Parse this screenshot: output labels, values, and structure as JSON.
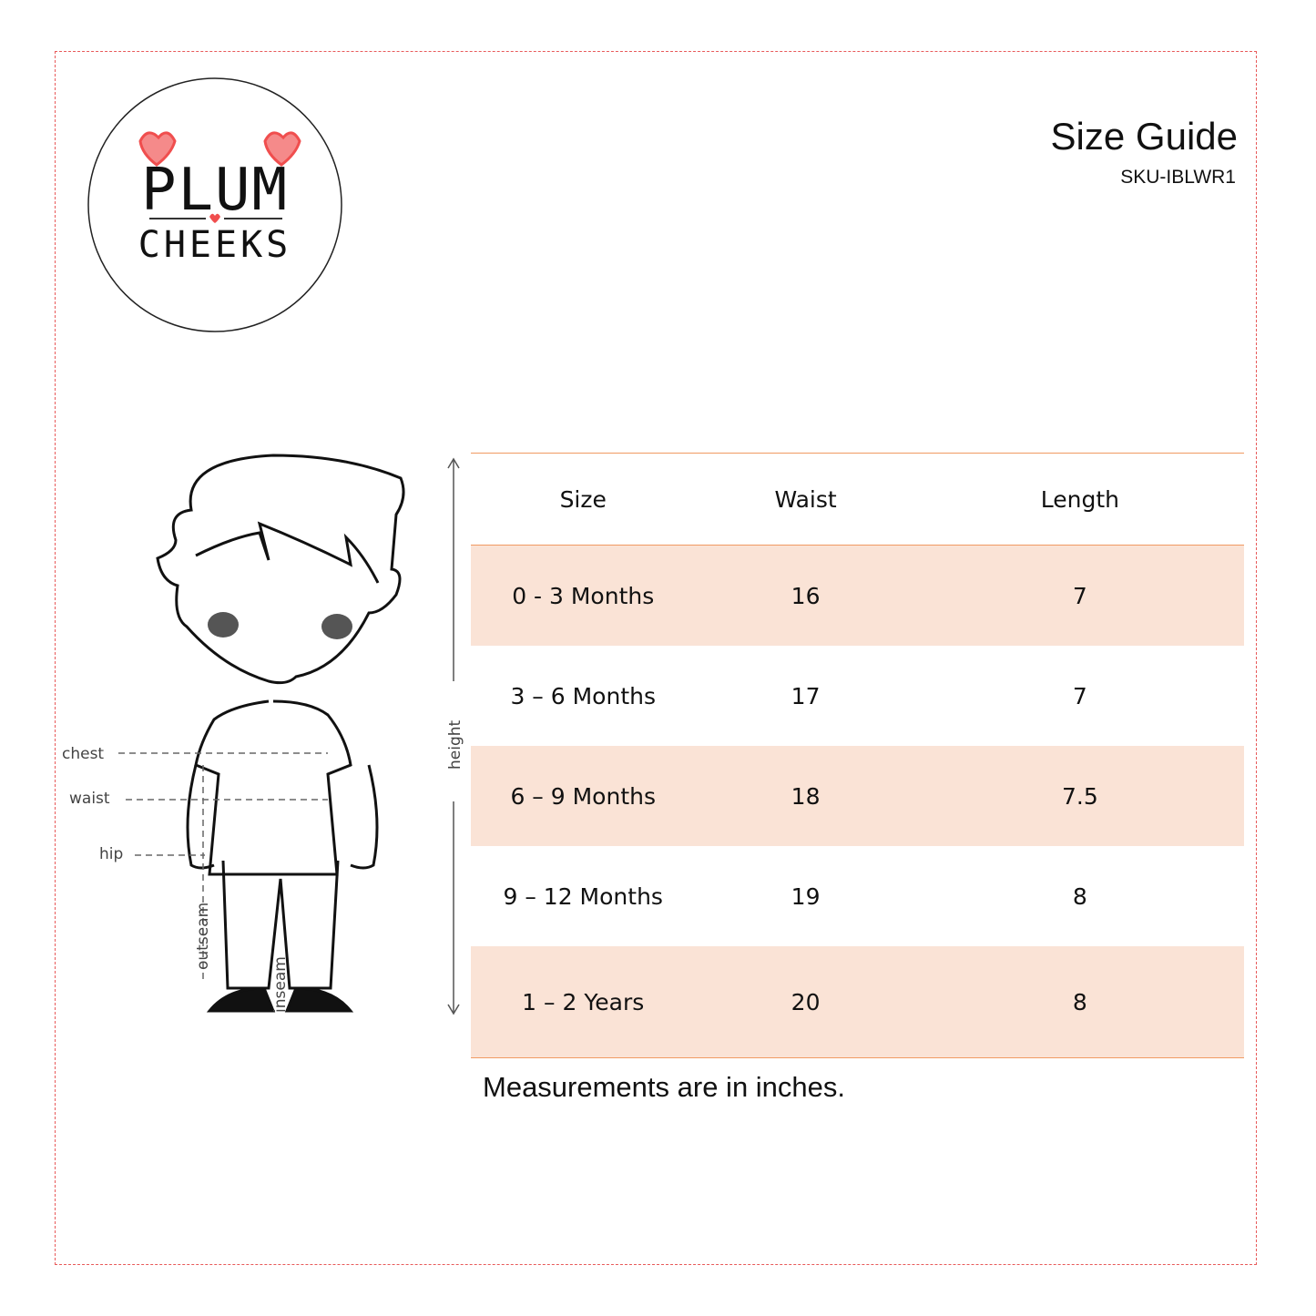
{
  "brand": {
    "logo_text": "PLUM CHEEKS",
    "accent": "#f04e4e"
  },
  "header": {
    "title": "Size Guide",
    "sku": "SKU-IBLWR1"
  },
  "illustration": {
    "labels": {
      "chest": "chest",
      "waist": "waist",
      "hip": "hip",
      "outseam": "outseam",
      "inseam": "inseam",
      "height": "height"
    }
  },
  "table": {
    "columns": [
      "Size",
      "Waist",
      "Length"
    ],
    "rows": [
      [
        "0 - 3 Months",
        "16",
        "7"
      ],
      [
        "3 – 6 Months",
        "17",
        "7"
      ],
      [
        "6 – 9 Months",
        "18",
        "7.5"
      ],
      [
        "9 – 12 Months",
        "19",
        "8"
      ],
      [
        "1 – 2 Years",
        "20",
        "8"
      ]
    ],
    "row_fill": "#fae3d6",
    "line_color": "#f19a62"
  },
  "footer": {
    "note": "Measurements are in inches."
  }
}
